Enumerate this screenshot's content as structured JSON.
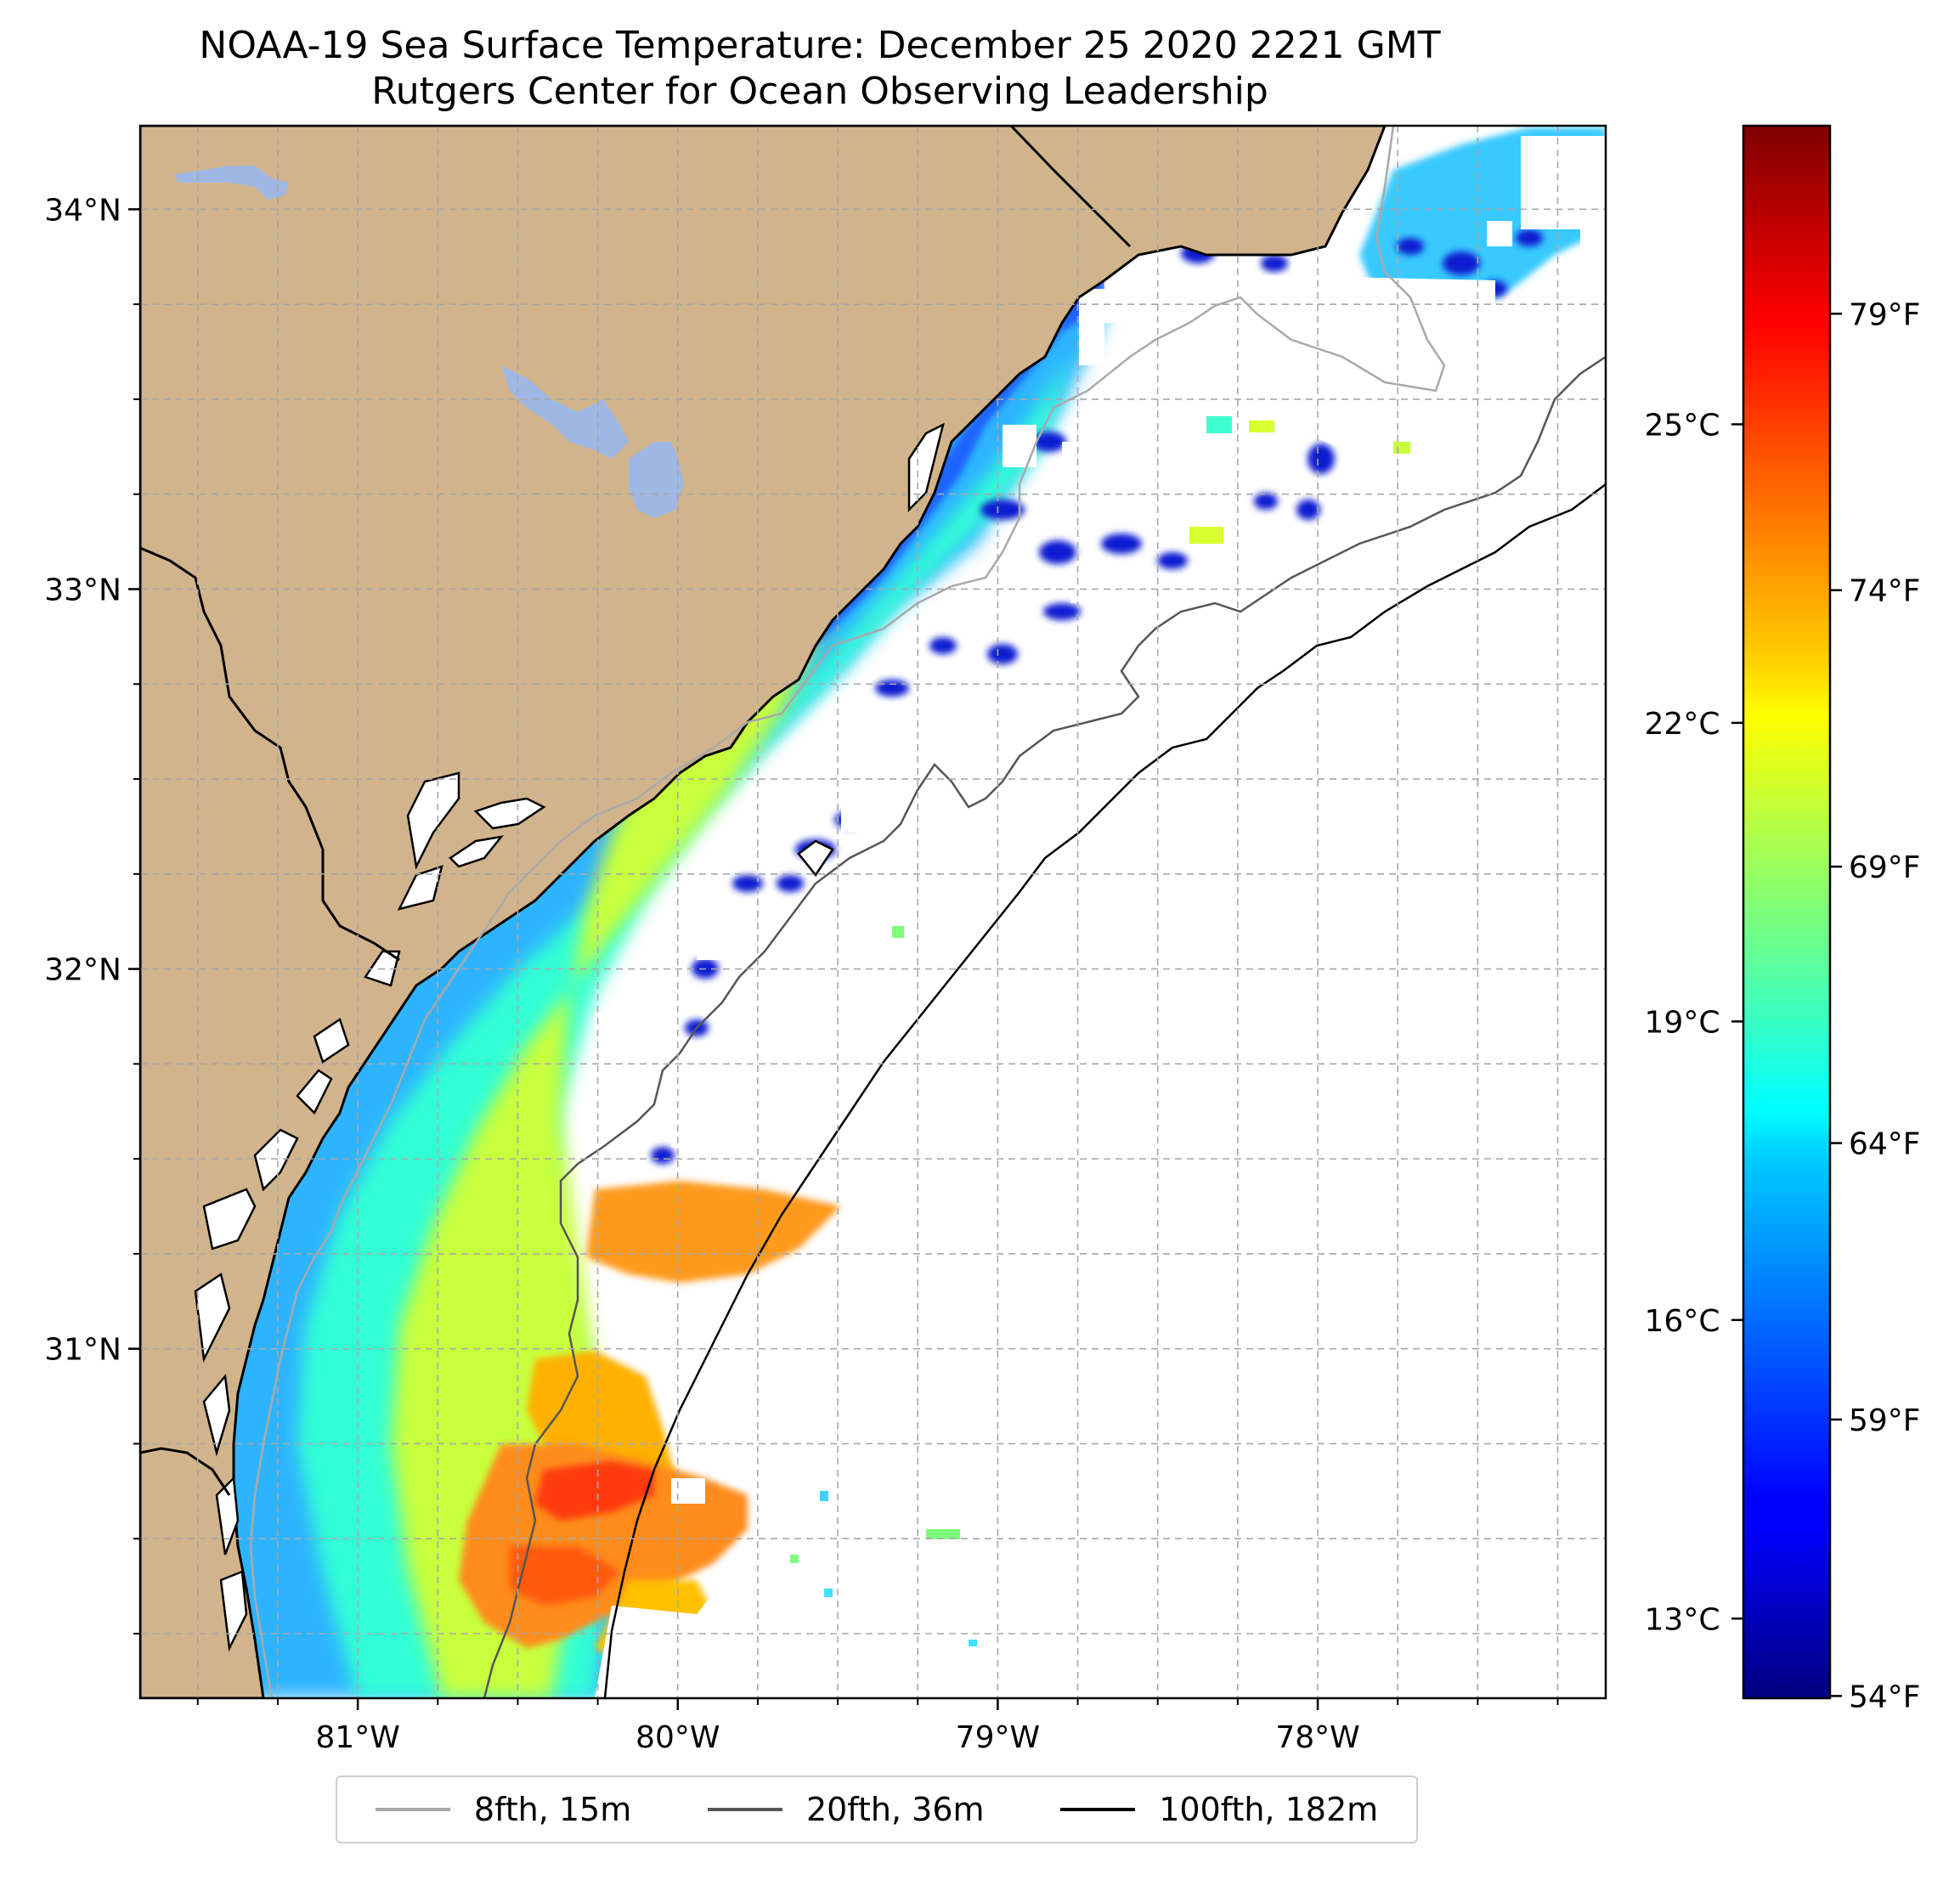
{
  "title": {
    "line1": "NOAA-19 Sea Surface Temperature: December 25 2020 2221 GMT",
    "line2": "Rutgers Center for Ocean Observing Leadership"
  },
  "map": {
    "lon_range": [
      -81.68,
      -77.1
    ],
    "lat_range": [
      30.08,
      34.22
    ],
    "land_color": "#d2b48c",
    "lake_color": "#9fb7e3",
    "grid_color": "#a8a8a8"
  },
  "axes": {
    "lat_labels": [
      {
        "value": 34,
        "text": "34°N"
      },
      {
        "value": 33,
        "text": "33°N"
      },
      {
        "value": 32,
        "text": "32°N"
      },
      {
        "value": 31,
        "text": "31°N"
      }
    ],
    "lon_labels": [
      {
        "value": -81,
        "text": "81°W"
      },
      {
        "value": -80,
        "text": "80°W"
      },
      {
        "value": -79,
        "text": "79°W"
      },
      {
        "value": -78,
        "text": "78°W"
      }
    ]
  },
  "colorbar": {
    "min_c": 12.2,
    "max_c": 28.0,
    "colormap": "jet",
    "celsius_ticks": [
      {
        "value": 13,
        "text": "13°C"
      },
      {
        "value": 16,
        "text": "16°C"
      },
      {
        "value": 19,
        "text": "19°C"
      },
      {
        "value": 22,
        "text": "22°C"
      },
      {
        "value": 25,
        "text": "25°C"
      }
    ],
    "fahrenheit_ticks": [
      {
        "value": 54,
        "text": "54°F"
      },
      {
        "value": 59,
        "text": "59°F"
      },
      {
        "value": 64,
        "text": "64°F"
      },
      {
        "value": 69,
        "text": "69°F"
      },
      {
        "value": 74,
        "text": "74°F"
      },
      {
        "value": 79,
        "text": "79°F"
      }
    ]
  },
  "legend": [
    {
      "label": "8fth, 15m",
      "color": "#a9a9a9"
    },
    {
      "label": "20fth, 36m",
      "color": "#555555"
    },
    {
      "label": "100fth, 182m",
      "color": "#000000"
    }
  ]
}
